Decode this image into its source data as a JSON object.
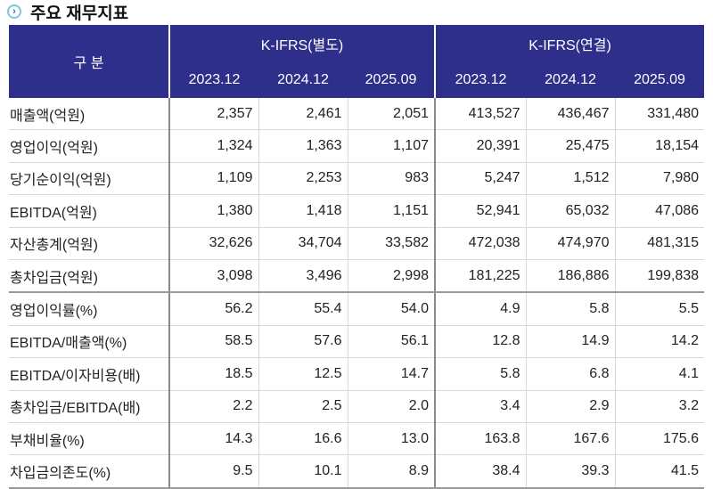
{
  "title": "주요 재무지표",
  "header": {
    "category": "구 분",
    "groups": [
      "K-IFRS(별도)",
      "K-IFRS(연결)"
    ],
    "periods": [
      "2023.12",
      "2024.12",
      "2025.09",
      "2023.12",
      "2024.12",
      "2025.09"
    ]
  },
  "rows": [
    {
      "label": "매출액(억원)",
      "values": [
        "2,357",
        "2,461",
        "2,051",
        "413,527",
        "436,467",
        "331,480"
      ]
    },
    {
      "label": "영업이익(억원)",
      "values": [
        "1,324",
        "1,363",
        "1,107",
        "20,391",
        "25,475",
        "18,154"
      ]
    },
    {
      "label": "당기순이익(억원)",
      "values": [
        "1,109",
        "2,253",
        "983",
        "5,247",
        "1,512",
        "7,980"
      ]
    },
    {
      "label": "EBITDA(억원)",
      "values": [
        "1,380",
        "1,418",
        "1,151",
        "52,941",
        "65,032",
        "47,086"
      ]
    },
    {
      "label": "자산총계(억원)",
      "values": [
        "32,626",
        "34,704",
        "33,582",
        "472,038",
        "474,970",
        "481,315"
      ]
    },
    {
      "label": "총차입금(억원)",
      "values": [
        "3,098",
        "3,496",
        "2,998",
        "181,225",
        "186,886",
        "199,838"
      ]
    },
    {
      "label": "영업이익률(%)",
      "values": [
        "56.2",
        "55.4",
        "54.0",
        "4.9",
        "5.8",
        "5.5"
      ]
    },
    {
      "label": "EBITDA/매출액(%)",
      "values": [
        "58.5",
        "57.6",
        "56.1",
        "12.8",
        "14.9",
        "14.2"
      ]
    },
    {
      "label": "EBITDA/이자비용(배)",
      "values": [
        "18.5",
        "12.5",
        "14.7",
        "5.8",
        "6.8",
        "4.1"
      ]
    },
    {
      "label": "총차입금/EBITDA(배)",
      "values": [
        "2.2",
        "2.5",
        "2.0",
        "3.4",
        "2.9",
        "3.2"
      ]
    },
    {
      "label": "부채비율(%)",
      "values": [
        "14.3",
        "16.6",
        "13.0",
        "163.8",
        "167.6",
        "175.6"
      ]
    },
    {
      "label": "차입금의존도(%)",
      "values": [
        "9.5",
        "10.1",
        "8.9",
        "38.4",
        "39.3",
        "41.5"
      ]
    }
  ]
}
